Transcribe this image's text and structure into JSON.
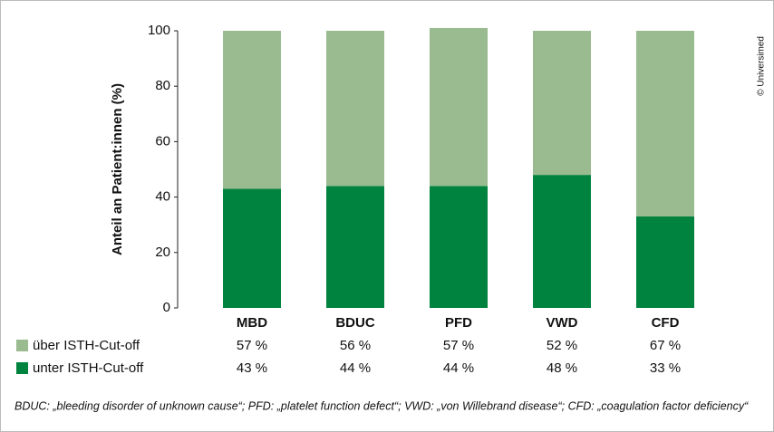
{
  "chart_data": {
    "type": "bar",
    "stacked": true,
    "y_label": "Anteil an Patient:innen (%)",
    "credit": "© Universimed",
    "categories": [
      "MBD",
      "BDUC",
      "PFD",
      "VWD",
      "CFD"
    ],
    "series": [
      {
        "name": "über ISTH-Cut-off",
        "color": "#99bb8f",
        "values": [
          57,
          56,
          57,
          52,
          67
        ],
        "value_labels": [
          "57 %",
          "56 %",
          "57 %",
          "52 %",
          "67 %"
        ]
      },
      {
        "name": "unter ISTH-Cut-off",
        "color": "#00833e",
        "values": [
          43,
          44,
          44,
          48,
          33
        ],
        "value_labels": [
          "43 %",
          "44 %",
          "44 %",
          "48 %",
          "33 %"
        ]
      }
    ],
    "ylim": [
      0,
      100
    ],
    "yticks": [
      0,
      20,
      40,
      60,
      80,
      100
    ],
    "footnote": "BDUC: „bleeding disorder of unknown cause“; PFD: „platelet function defect“; VWD: „von Willebrand disease“; CFD: „coagulation factor deficiency“"
  }
}
